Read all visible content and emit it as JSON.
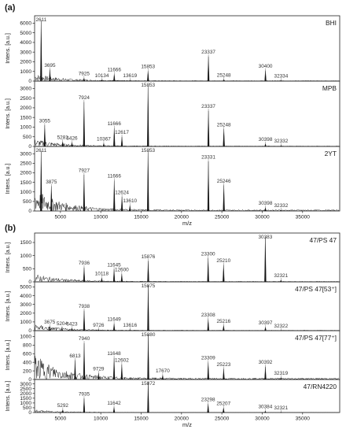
{
  "chart_data": [
    {
      "panel_label": "(a)",
      "type": "line",
      "xlabel": "m/z",
      "xlim": [
        1800,
        39600
      ],
      "xticks": [
        5000,
        10000,
        15000,
        20000,
        25000,
        30000,
        35000
      ],
      "spectra": [
        {
          "name": "BHI",
          "ylabel": "Intens. [a.u.]",
          "ylim": [
            0,
            6600
          ],
          "yticks": [
            0,
            1000,
            2000,
            3000,
            4000,
            5000,
            6000
          ],
          "baseline": 300,
          "peaks": [
            {
              "mz": 2611,
              "intensity": 6300
            },
            {
              "mz": 3695,
              "intensity": 1200
            },
            {
              "mz": 7925,
              "intensity": 320
            },
            {
              "mz": 10134,
              "intensity": 140
            },
            {
              "mz": 11666,
              "intensity": 720
            },
            {
              "mz": 13619,
              "intensity": 120
            },
            {
              "mz": 15853,
              "intensity": 1050
            },
            {
              "mz": 23337,
              "intensity": 2550
            },
            {
              "mz": 25248,
              "intensity": 180
            },
            {
              "mz": 30400,
              "intensity": 1100
            },
            {
              "mz": 32334,
              "intensity": 90
            }
          ]
        },
        {
          "name": "MPB",
          "ylabel": "Intens. [a.u.]",
          "ylim": [
            0,
            3300
          ],
          "yticks": [
            0,
            500,
            1000,
            1500,
            2000,
            2500,
            3000
          ],
          "baseline": 150,
          "peaks": [
            {
              "mz": 3055,
              "intensity": 1100
            },
            {
              "mz": 5281,
              "intensity": 250
            },
            {
              "mz": 6426,
              "intensity": 210
            },
            {
              "mz": 7924,
              "intensity": 2300
            },
            {
              "mz": 10367,
              "intensity": 160
            },
            {
              "mz": 11666,
              "intensity": 950
            },
            {
              "mz": 12617,
              "intensity": 500
            },
            {
              "mz": 15853,
              "intensity": 3150
            },
            {
              "mz": 23337,
              "intensity": 1850
            },
            {
              "mz": 25248,
              "intensity": 900
            },
            {
              "mz": 30398,
              "intensity": 140
            },
            {
              "mz": 32332,
              "intensity": 60
            }
          ]
        },
        {
          "name": "2YT",
          "ylabel": "Intens. [a.u.]",
          "ylim": [
            0,
            3300
          ],
          "yticks": [
            0,
            500,
            1000,
            1500,
            2000,
            2500,
            3000
          ],
          "baseline": 450,
          "peaks": [
            {
              "mz": 2611,
              "intensity": 3150
            },
            {
              "mz": 3875,
              "intensity": 1300
            },
            {
              "mz": 7927,
              "intensity": 1900
            },
            {
              "mz": 11666,
              "intensity": 1600
            },
            {
              "mz": 12624,
              "intensity": 750
            },
            {
              "mz": 13610,
              "intensity": 300
            },
            {
              "mz": 15853,
              "intensity": 3150
            },
            {
              "mz": 23331,
              "intensity": 2600
            },
            {
              "mz": 25246,
              "intensity": 1350
            },
            {
              "mz": 30398,
              "intensity": 180
            },
            {
              "mz": 32332,
              "intensity": 60
            }
          ]
        }
      ]
    },
    {
      "panel_label": "(b)",
      "type": "line",
      "xlabel": "m/z",
      "xlim": [
        1800,
        39600
      ],
      "xticks": [
        5000,
        10000,
        15000,
        20000,
        25000,
        30000,
        35000
      ],
      "spectra": [
        {
          "name": "47/PS 47",
          "ylabel": "Intens. [a.u.]",
          "ylim": [
            0,
            1800
          ],
          "yticks": [
            0,
            500,
            1000,
            1500
          ],
          "baseline": 120,
          "peaks": [
            {
              "mz": 7936,
              "intensity": 550
            },
            {
              "mz": 10118,
              "intensity": 150
            },
            {
              "mz": 11645,
              "intensity": 480
            },
            {
              "mz": 12600,
              "intensity": 300
            },
            {
              "mz": 15876,
              "intensity": 800
            },
            {
              "mz": 23300,
              "intensity": 900
            },
            {
              "mz": 25210,
              "intensity": 650
            },
            {
              "mz": 30383,
              "intensity": 1700
            },
            {
              "mz": 32321,
              "intensity": 70
            }
          ]
        },
        {
          "name": "47/PS 47[53⁺]",
          "ylabel": "Intens. [a.u.]",
          "ylim": [
            0,
            5400
          ],
          "yticks": [
            0,
            1000,
            2000,
            3000,
            4000,
            5000
          ],
          "baseline": 300,
          "peaks": [
            {
              "mz": 3675,
              "intensity": 500
            },
            {
              "mz": 5204,
              "intensity": 300
            },
            {
              "mz": 6423,
              "intensity": 280
            },
            {
              "mz": 7938,
              "intensity": 2300
            },
            {
              "mz": 9726,
              "intensity": 150
            },
            {
              "mz": 11649,
              "intensity": 800
            },
            {
              "mz": 13616,
              "intensity": 150
            },
            {
              "mz": 15875,
              "intensity": 5200
            },
            {
              "mz": 23308,
              "intensity": 1300
            },
            {
              "mz": 25216,
              "intensity": 600
            },
            {
              "mz": 30397,
              "intensity": 400
            },
            {
              "mz": 32322,
              "intensity": 60
            }
          ]
        },
        {
          "name": "47/PS 47[77⁺]",
          "ylabel": "Intens. [a.u.]",
          "ylim": [
            0,
            1100
          ],
          "yticks": [
            0,
            200,
            400,
            600,
            800,
            1000
          ],
          "baseline": 230,
          "peaks": [
            {
              "mz": 6813,
              "intensity": 450
            },
            {
              "mz": 7940,
              "intensity": 850
            },
            {
              "mz": 9729,
              "intensity": 150
            },
            {
              "mz": 11648,
              "intensity": 500
            },
            {
              "mz": 12602,
              "intensity": 350
            },
            {
              "mz": 15880,
              "intensity": 1050
            },
            {
              "mz": 17670,
              "intensity": 100
            },
            {
              "mz": 23309,
              "intensity": 400
            },
            {
              "mz": 25223,
              "intensity": 250
            },
            {
              "mz": 30392,
              "intensity": 300
            },
            {
              "mz": 32319,
              "intensity": 50
            }
          ]
        },
        {
          "name": "47/RN4220",
          "ylabel": "Intens. [a.u.]",
          "ylim": [
            0,
            3300
          ],
          "yticks": [
            0,
            500,
            1000,
            1500,
            2000,
            2500,
            3000
          ],
          "baseline": 120,
          "peaks": [
            {
              "mz": 5292,
              "intensity": 300
            },
            {
              "mz": 7935,
              "intensity": 1500
            },
            {
              "mz": 11642,
              "intensity": 550
            },
            {
              "mz": 15872,
              "intensity": 3200
            },
            {
              "mz": 23298,
              "intensity": 900
            },
            {
              "mz": 25207,
              "intensity": 500
            },
            {
              "mz": 30384,
              "intensity": 150
            },
            {
              "mz": 32321,
              "intensity": 60
            }
          ]
        }
      ]
    }
  ]
}
